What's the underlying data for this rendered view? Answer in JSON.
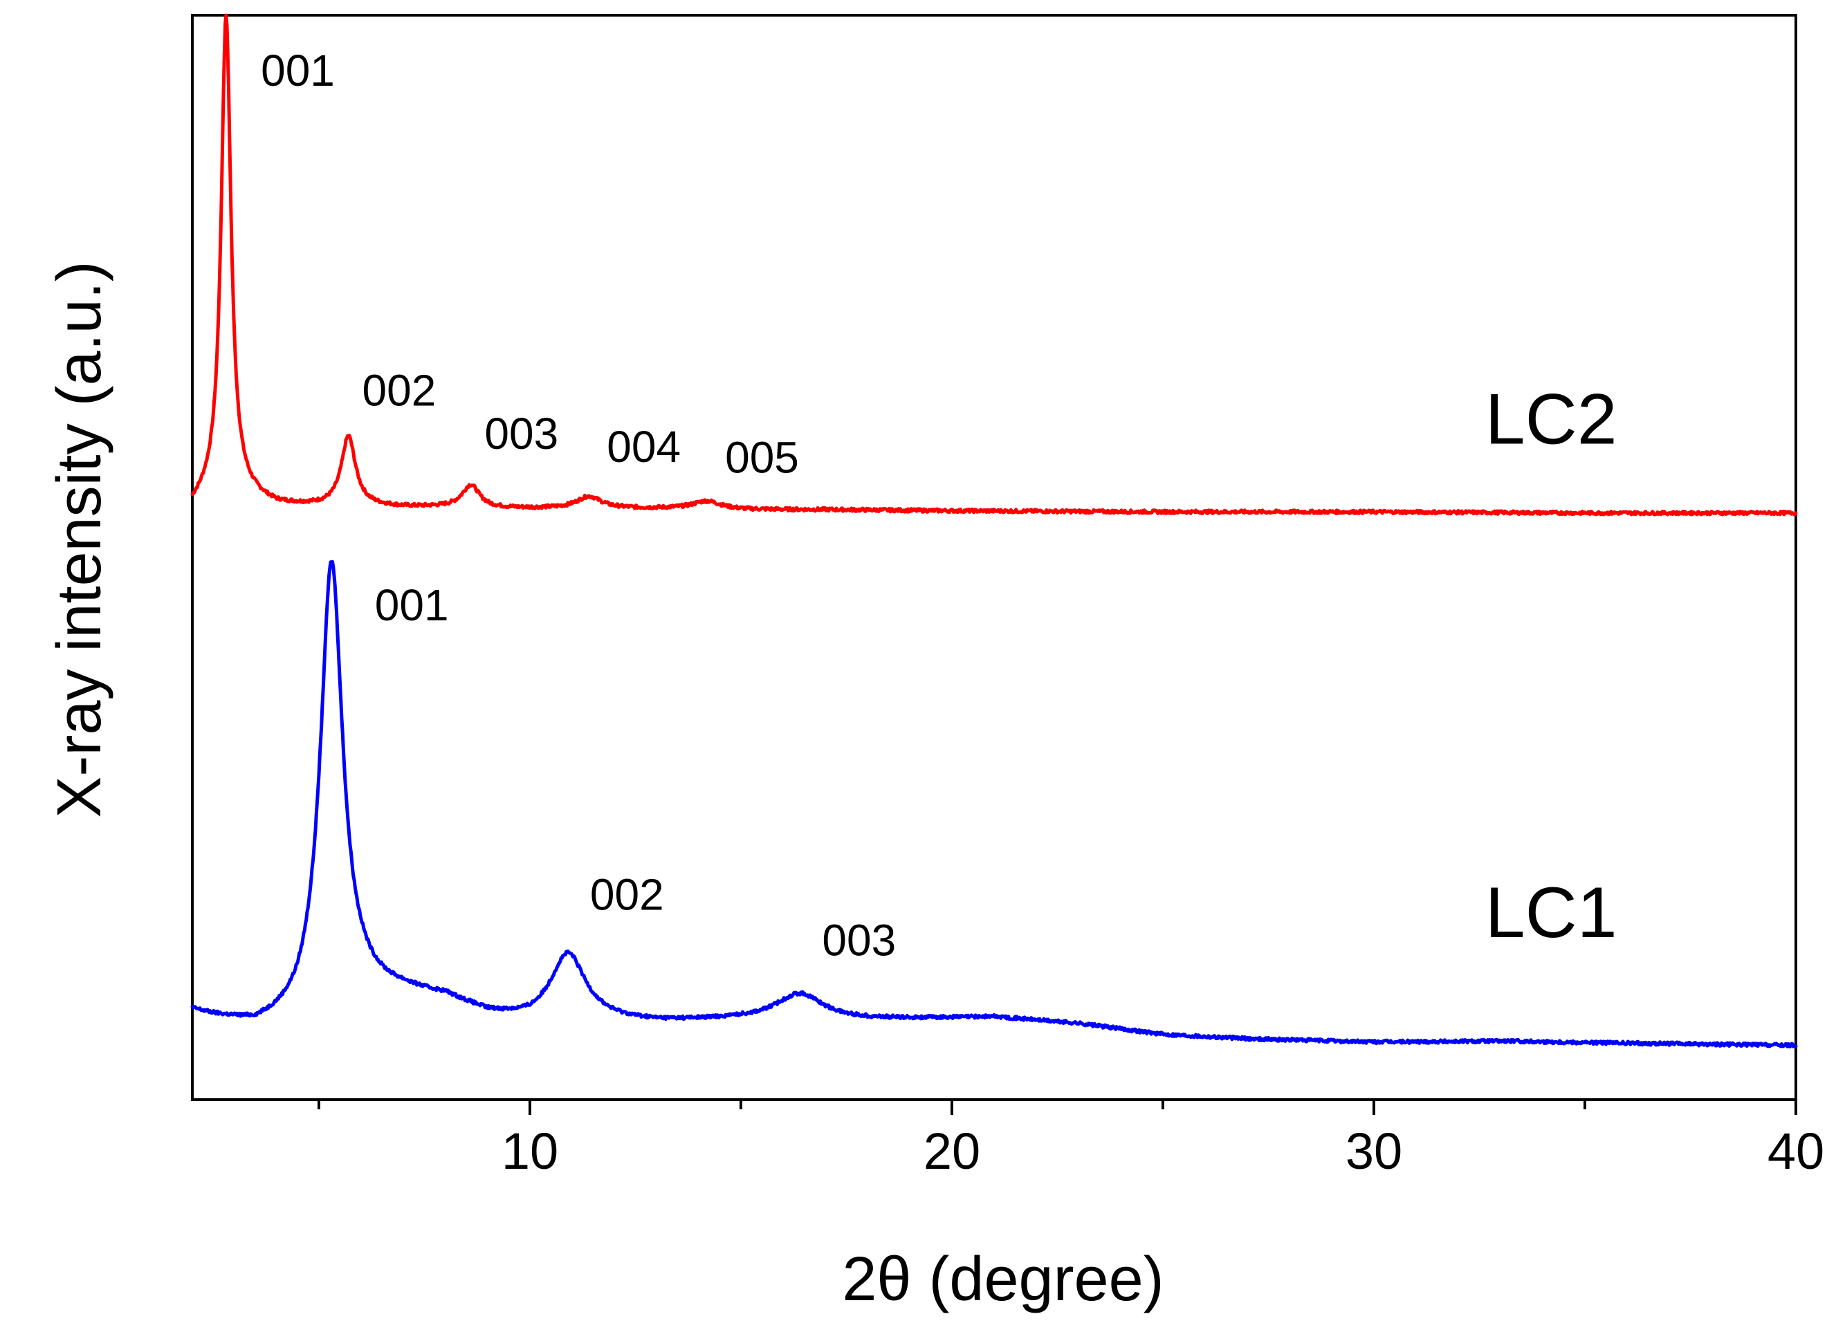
{
  "chart_data": {
    "type": "line",
    "title": "",
    "xlabel": "2θ (degree)",
    "ylabel": "X-ray intensity (a.u.)",
    "xlim": [
      2,
      40
    ],
    "ylim": [
      0,
      1
    ],
    "x_ticks": [
      10,
      20,
      30,
      40
    ],
    "x_minor_ticks": [
      5,
      15,
      25,
      35
    ],
    "grid": false,
    "series": [
      {
        "name": "LC2",
        "color": "#ff0000",
        "baseline": [
          [
            2.0,
            0.545
          ],
          [
            2.3,
            0.552
          ],
          [
            2.8,
            0.56
          ],
          [
            4,
            0.548
          ],
          [
            5,
            0.547
          ],
          [
            6,
            0.547
          ],
          [
            7,
            0.546
          ],
          [
            8,
            0.546
          ],
          [
            9,
            0.545
          ],
          [
            10,
            0.545
          ],
          [
            11,
            0.545
          ],
          [
            12,
            0.545
          ],
          [
            13,
            0.545
          ],
          [
            14,
            0.545
          ],
          [
            15,
            0.544
          ],
          [
            17,
            0.544
          ],
          [
            20,
            0.543
          ],
          [
            25,
            0.542
          ],
          [
            30,
            0.542
          ],
          [
            35,
            0.541
          ],
          [
            40,
            0.541
          ]
        ],
        "peaks": [
          {
            "center": 2.8,
            "height": 0.44,
            "width": 0.14
          },
          {
            "center": 5.7,
            "height": 0.064,
            "width": 0.2
          },
          {
            "center": 8.6,
            "height": 0.021,
            "width": 0.25
          },
          {
            "center": 11.4,
            "height": 0.011,
            "width": 0.35
          },
          {
            "center": 14.2,
            "height": 0.007,
            "width": 0.4
          }
        ]
      },
      {
        "name": "LC1",
        "color": "#0000ff",
        "baseline": [
          [
            2.0,
            0.081
          ],
          [
            2.5,
            0.075
          ],
          [
            3.5,
            0.066
          ],
          [
            4.5,
            0.071
          ],
          [
            5.0,
            0.082
          ],
          [
            6,
            0.096
          ],
          [
            7,
            0.097
          ],
          [
            8,
            0.093
          ],
          [
            9,
            0.078
          ],
          [
            10,
            0.072
          ],
          [
            11,
            0.074
          ],
          [
            12,
            0.072
          ],
          [
            13,
            0.071
          ],
          [
            14,
            0.072
          ],
          [
            15,
            0.073
          ],
          [
            17,
            0.072
          ],
          [
            19,
            0.074
          ],
          [
            21,
            0.076
          ],
          [
            23,
            0.07
          ],
          [
            25,
            0.06
          ],
          [
            27,
            0.056
          ],
          [
            30,
            0.053
          ],
          [
            33,
            0.054
          ],
          [
            36,
            0.052
          ],
          [
            40,
            0.05
          ]
        ],
        "peaks": [
          {
            "center": 5.3,
            "height": 0.41,
            "width": 0.32
          },
          {
            "center": 10.9,
            "height": 0.06,
            "width": 0.5
          },
          {
            "center": 16.4,
            "height": 0.025,
            "width": 0.7
          }
        ]
      }
    ],
    "annotations": [
      {
        "series": "LC2",
        "text": "001",
        "x": 4.5,
        "y": 0.935
      },
      {
        "series": "LC2",
        "text": "002",
        "x": 6.9,
        "y": 0.64
      },
      {
        "series": "LC2",
        "text": "003",
        "x": 9.8,
        "y": 0.6
      },
      {
        "series": "LC2",
        "text": "004",
        "x": 12.7,
        "y": 0.588
      },
      {
        "series": "LC2",
        "text": "005",
        "x": 15.5,
        "y": 0.578
      },
      {
        "series": "LC1",
        "text": "001",
        "x": 7.2,
        "y": 0.442
      },
      {
        "series": "LC1",
        "text": "002",
        "x": 12.3,
        "y": 0.175
      },
      {
        "series": "LC1",
        "text": "003",
        "x": 17.8,
        "y": 0.133
      }
    ],
    "series_labels": [
      {
        "text": "LC2",
        "x": 34.2,
        "y": 0.605
      },
      {
        "text": "LC1",
        "x": 34.2,
        "y": 0.15
      }
    ]
  }
}
